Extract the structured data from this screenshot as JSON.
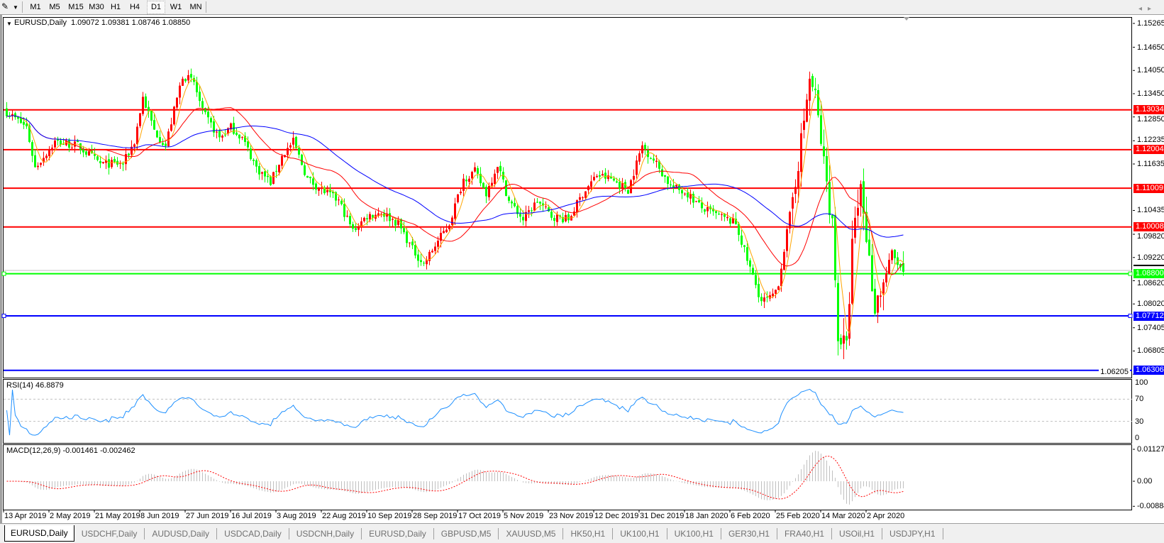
{
  "toolbar": {
    "timeframes": [
      "M1",
      "M5",
      "M15",
      "M30",
      "H1",
      "H4",
      "D1",
      "W1",
      "MN"
    ],
    "active": "D1",
    "tool_icon": "line-studies-icon"
  },
  "header": {
    "symbol": "EURUSD,Daily",
    "ohlc": "1.09072 1.09381 1.08746 1.08850"
  },
  "price_axis": [
    "1.15265",
    "1.14650",
    "1.14050",
    "1.13450",
    "1.12850",
    "1.12235",
    "1.11635",
    "1.10435",
    "1.09820",
    "1.09220",
    "1.08620",
    "1.08020",
    "1.07405",
    "1.06805",
    "1.06205"
  ],
  "levels": [
    {
      "price": "1.13034",
      "color": "#ff0000"
    },
    {
      "price": "1.12004",
      "color": "#ff0000"
    },
    {
      "price": "1.11009",
      "color": "#ff0000"
    },
    {
      "price": "1.10008",
      "color": "#ff0000"
    },
    {
      "price": "1.08800",
      "color": "#00ff00"
    },
    {
      "price": "1.07712",
      "color": "#0000ff"
    },
    {
      "price": "1.06306",
      "color": "#0000ff"
    }
  ],
  "rsi": {
    "label": "RSI(14) 46.8879",
    "axis": [
      "100",
      "70",
      "30",
      "0"
    ],
    "color": "#1e90ff"
  },
  "macd": {
    "label": "MACD(12,26,9) -0.001461 -0.002462",
    "axis": [
      "0.011277",
      "0.00",
      "-0.008845"
    ],
    "hist_color": "#c0c0c0",
    "signal_color": "#ff0000"
  },
  "date_axis": [
    "13 Apr 2019",
    "2 May 2019",
    "21 May 2019",
    "8 Jun 2019",
    "27 Jun 2019",
    "16 Jul 2019",
    "3 Aug 2019",
    "22 Aug 2019",
    "10 Sep 2019",
    "28 Sep 2019",
    "17 Oct 2019",
    "5 Nov 2019",
    "23 Nov 2019",
    "12 Dec 2019",
    "31 Dec 2019",
    "18 Jan 2020",
    "6 Feb 2020",
    "25 Feb 2020",
    "14 Mar 2020",
    "2 Apr 2020"
  ],
  "tabs": [
    "EURUSD,Daily",
    "USDCHF,Daily",
    "AUDUSD,Daily",
    "USDCAD,Daily",
    "USDCNH,Daily",
    "EURUSD,Daily",
    "GBPUSD,M5",
    "XAUUSD,M5",
    "HK50,H1",
    "UK100,H1",
    "UK100,H1",
    "GER30,H1",
    "FRA40,H1",
    "USOil,H1",
    "USDJPY,H1"
  ],
  "active_tab": 0,
  "chart_data": {
    "type": "candlestick",
    "symbol": "EURUSD",
    "timeframe": "Daily",
    "ylim": [
      1.06205,
      1.15265
    ],
    "bull_color": "#ff0000",
    "bear_color": "#00ff00",
    "ma_colors": [
      "#ffa500",
      "#ff0000",
      "#0000ff"
    ],
    "close_path": [
      [
        0,
        1.1298
      ],
      [
        7,
        1.1259
      ],
      [
        10,
        1.1154
      ],
      [
        17,
        1.1221
      ],
      [
        25,
        1.1211
      ],
      [
        33,
        1.1164
      ],
      [
        41,
        1.1164
      ],
      [
        45,
        1.1221
      ],
      [
        48,
        1.1336
      ],
      [
        52,
        1.125
      ],
      [
        56,
        1.1211
      ],
      [
        62,
        1.1393
      ],
      [
        66,
        1.1374
      ],
      [
        69,
        1.1298
      ],
      [
        75,
        1.1231
      ],
      [
        79,
        1.1259
      ],
      [
        83,
        1.1231
      ],
      [
        88,
        1.1154
      ],
      [
        93,
        1.1116
      ],
      [
        97,
        1.1183
      ],
      [
        101,
        1.1221
      ],
      [
        106,
        1.1125
      ],
      [
        111,
        1.1097
      ],
      [
        117,
        1.1068
      ],
      [
        122,
        1.0991
      ],
      [
        127,
        1.1029
      ],
      [
        132,
        1.1039
      ],
      [
        138,
        1.101
      ],
      [
        143,
        1.0943
      ],
      [
        147,
        1.0905
      ],
      [
        151,
        1.0953
      ],
      [
        156,
        1.101
      ],
      [
        161,
        1.1125
      ],
      [
        165,
        1.1144
      ],
      [
        169,
        1.1087
      ],
      [
        173,
        1.1164
      ],
      [
        177,
        1.1068
      ],
      [
        182,
        1.102
      ],
      [
        187,
        1.1068
      ],
      [
        192,
        1.1029
      ],
      [
        198,
        1.102
      ],
      [
        203,
        1.1087
      ],
      [
        208,
        1.1135
      ],
      [
        213,
        1.1125
      ],
      [
        219,
        1.1097
      ],
      [
        224,
        1.1211
      ],
      [
        229,
        1.1164
      ],
      [
        234,
        1.1106
      ],
      [
        240,
        1.1087
      ],
      [
        245,
        1.1049
      ],
      [
        251,
        1.1029
      ],
      [
        257,
        1.101
      ],
      [
        261,
        1.0915
      ],
      [
        266,
        1.0809
      ],
      [
        270,
        1.0819
      ],
      [
        272,
        1.0857
      ],
      [
        276,
        1.1029
      ],
      [
        280,
        1.1221
      ],
      [
        283,
        1.1384
      ],
      [
        285,
        1.1336
      ],
      [
        288,
        1.1164
      ],
      [
        291,
        1.101
      ],
      [
        293,
        1.0723
      ],
      [
        296,
        1.0685
      ],
      [
        298,
        1.0953
      ],
      [
        301,
        1.1106
      ],
      [
        304,
        1.0915
      ],
      [
        306,
        1.0799
      ],
      [
        309,
        1.0857
      ],
      [
        312,
        1.0934
      ],
      [
        314,
        1.0905
      ],
      [
        316,
        1.0885
      ]
    ]
  }
}
